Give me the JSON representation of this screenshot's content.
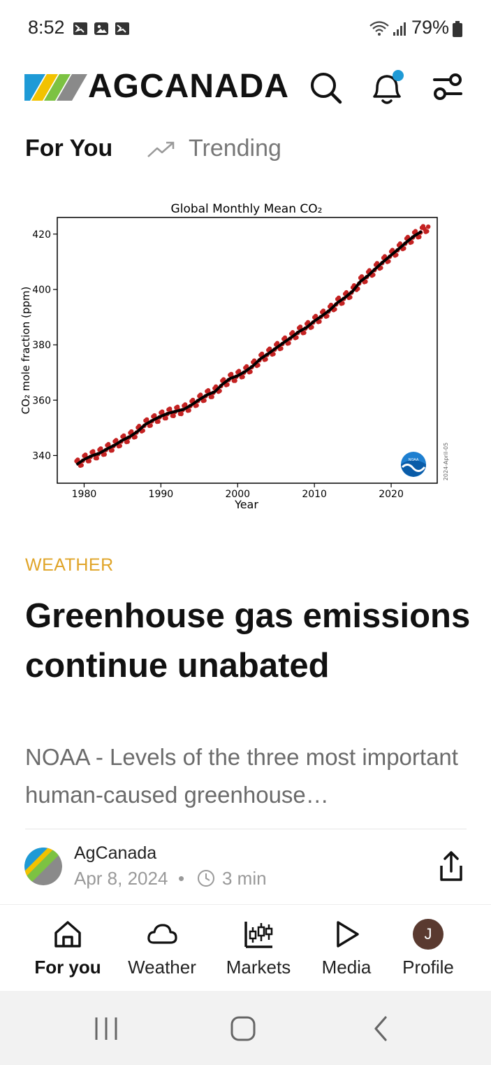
{
  "status_bar": {
    "time": "8:52",
    "battery": "79%"
  },
  "header": {
    "brand_bold": "AG",
    "brand_rest": "CANADA",
    "accent_color": "#1e9ad6"
  },
  "tabs": [
    {
      "label": "For You",
      "active": true
    },
    {
      "label": "Trending",
      "active": false
    }
  ],
  "article": {
    "category": "WEATHER",
    "headline": "Greenhouse gas emissions continue unabated",
    "summary": "NOAA - Levels of the three most important human-caused greenhouse…",
    "author": "AgCanada",
    "date": "Apr 8, 2024",
    "separator": "•",
    "read_time": "3 min"
  },
  "chart_data": {
    "type": "line",
    "title": "Global Monthly Mean CO₂",
    "xlabel": "Year",
    "ylabel": "CO₂ mole fraction (ppm)",
    "xlim": [
      1976.5,
      2026
    ],
    "ylim": [
      330,
      426
    ],
    "xticks": [
      1980,
      1990,
      2000,
      2010,
      2020
    ],
    "yticks": [
      340,
      360,
      380,
      400,
      420
    ],
    "watermark": "2024-April-05",
    "logo_text": "NOAA",
    "series": [
      {
        "style": "monthly-red-dots",
        "color": "#c42222",
        "x": [
          1979,
          1980,
          1981,
          1982,
          1983,
          1984,
          1985,
          1986,
          1987,
          1988,
          1989,
          1990,
          1991,
          1992,
          1993,
          1994,
          1995,
          1996,
          1997,
          1998,
          1999,
          2000,
          2001,
          2002,
          2003,
          2004,
          2005,
          2006,
          2007,
          2008,
          2009,
          2010,
          2011,
          2012,
          2013,
          2014,
          2015,
          2016,
          2017,
          2018,
          2019,
          2020,
          2021,
          2022,
          2023,
          2024
        ],
        "y": [
          336.7,
          338.6,
          339.9,
          340.8,
          342.4,
          343.8,
          345.5,
          346.9,
          348.8,
          351.3,
          352.8,
          354.2,
          355.3,
          356.0,
          356.7,
          358.3,
          360.2,
          361.9,
          363.0,
          365.7,
          367.8,
          368.8,
          370.4,
          372.4,
          375.0,
          376.8,
          378.8,
          380.8,
          382.7,
          384.8,
          386.3,
          388.6,
          390.5,
          392.5,
          395.2,
          397.1,
          399.4,
          402.9,
          405.0,
          407.6,
          410.1,
          412.4,
          414.7,
          417.1,
          419.3,
          421.0
        ]
      },
      {
        "style": "trend-black",
        "color": "#000000",
        "x": [
          1979,
          1980,
          1981,
          1982,
          1983,
          1984,
          1985,
          1986,
          1987,
          1988,
          1989,
          1990,
          1991,
          1992,
          1993,
          1994,
          1995,
          1996,
          1997,
          1998,
          1999,
          2000,
          2001,
          2002,
          2003,
          2004,
          2005,
          2006,
          2007,
          2008,
          2009,
          2010,
          2011,
          2012,
          2013,
          2014,
          2015,
          2016,
          2017,
          2018,
          2019,
          2020,
          2021,
          2022,
          2023,
          2024
        ],
        "y": [
          336.7,
          338.6,
          339.9,
          340.8,
          342.4,
          343.8,
          345.5,
          346.9,
          348.8,
          351.3,
          352.8,
          354.2,
          355.3,
          356.0,
          356.7,
          358.3,
          360.2,
          361.9,
          363.0,
          365.7,
          367.8,
          368.8,
          370.4,
          372.4,
          375.0,
          376.8,
          378.8,
          380.8,
          382.7,
          384.8,
          386.3,
          388.6,
          390.5,
          392.5,
          395.2,
          397.1,
          399.4,
          402.9,
          405.0,
          407.6,
          410.1,
          412.4,
          414.7,
          417.1,
          419.3,
          421.0
        ]
      }
    ]
  },
  "bottom_nav": [
    {
      "label": "For you",
      "icon": "home-icon",
      "active": true
    },
    {
      "label": "Weather",
      "icon": "cloud-icon",
      "active": false
    },
    {
      "label": "Markets",
      "icon": "candlestick-icon",
      "active": false
    },
    {
      "label": "Media",
      "icon": "play-icon",
      "active": false
    },
    {
      "label": "Profile",
      "icon": "avatar",
      "avatar_initial": "J",
      "avatar_color": "#5a3a30",
      "active": false
    }
  ]
}
